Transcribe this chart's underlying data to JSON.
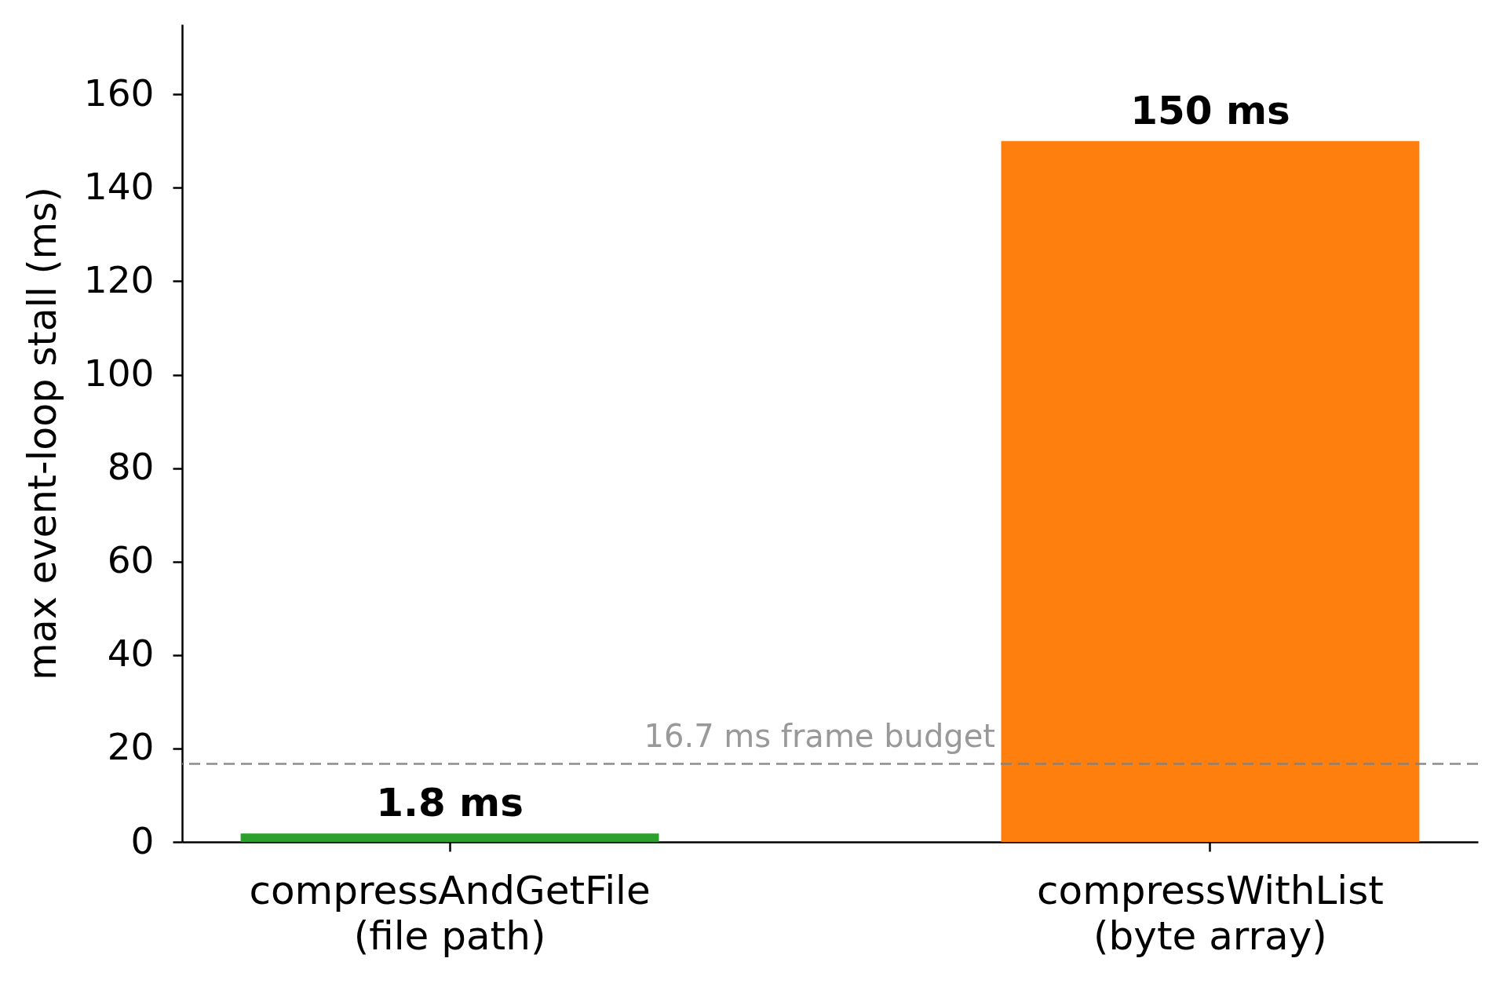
{
  "chart_data": {
    "type": "bar",
    "ylabel": "max event-loop stall (ms)",
    "categories": [
      "compressAndGetFile\n(file path)",
      "compressWithList\n(byte array)"
    ],
    "values": [
      1.8,
      150
    ],
    "colors": [
      "#2ca02c",
      "#ff7f0e"
    ],
    "value_labels": [
      "1.8 ms",
      "150 ms"
    ],
    "ylim": [
      0,
      175
    ],
    "yticks": [
      0,
      20,
      40,
      60,
      80,
      100,
      120,
      140,
      160
    ],
    "ref_lines": [
      {
        "axis": "y",
        "value": 16.7,
        "label": "16.7 ms frame budget",
        "color": "#808080",
        "line_style": "dashed"
      }
    ]
  }
}
